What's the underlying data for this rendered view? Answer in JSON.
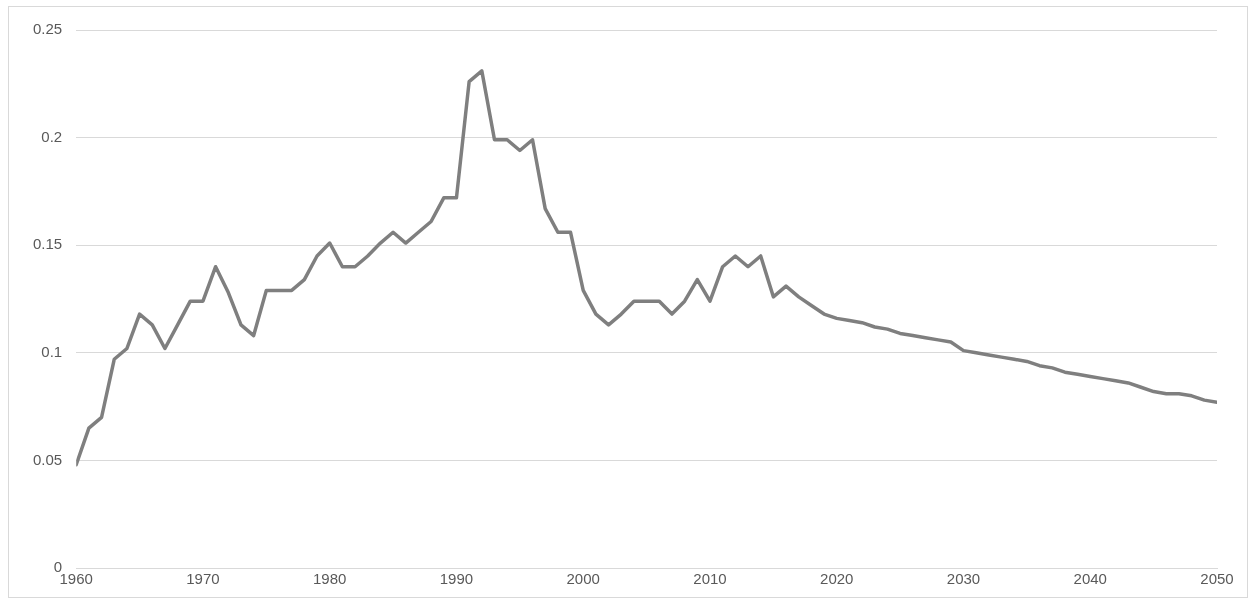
{
  "chart_data": {
    "type": "line",
    "x": [
      1960,
      1961,
      1962,
      1963,
      1964,
      1965,
      1966,
      1967,
      1968,
      1969,
      1970,
      1971,
      1972,
      1973,
      1974,
      1975,
      1976,
      1977,
      1978,
      1979,
      1980,
      1981,
      1982,
      1983,
      1984,
      1985,
      1986,
      1987,
      1988,
      1989,
      1990,
      1991,
      1992,
      1993,
      1994,
      1995,
      1996,
      1997,
      1998,
      1999,
      2000,
      2001,
      2002,
      2003,
      2004,
      2005,
      2006,
      2007,
      2008,
      2009,
      2010,
      2011,
      2012,
      2013,
      2014,
      2015,
      2016,
      2017,
      2018,
      2019,
      2020,
      2021,
      2022,
      2023,
      2024,
      2025,
      2026,
      2027,
      2028,
      2029,
      2030,
      2031,
      2032,
      2033,
      2034,
      2035,
      2036,
      2037,
      2038,
      2039,
      2040,
      2041,
      2042,
      2043,
      2044,
      2045,
      2046,
      2047,
      2048,
      2049,
      2050
    ],
    "series": [
      {
        "color": "#7f7f7f",
        "values": [
          0.048,
          0.065,
          0.07,
          0.097,
          0.102,
          0.118,
          0.113,
          0.102,
          0.113,
          0.124,
          0.124,
          0.14,
          0.128,
          0.113,
          0.108,
          0.129,
          0.129,
          0.129,
          0.134,
          0.145,
          0.151,
          0.14,
          0.14,
          0.145,
          0.151,
          0.156,
          0.151,
          0.156,
          0.161,
          0.172,
          0.172,
          0.226,
          0.231,
          0.199,
          0.199,
          0.194,
          0.199,
          0.167,
          0.156,
          0.156,
          0.129,
          0.118,
          0.113,
          0.118,
          0.124,
          0.124,
          0.124,
          0.118,
          0.124,
          0.134,
          0.124,
          0.14,
          0.145,
          0.14,
          0.145,
          0.126,
          0.131,
          0.126,
          0.122,
          0.118,
          0.116,
          0.115,
          0.114,
          0.112,
          0.111,
          0.109,
          0.108,
          0.107,
          0.106,
          0.105,
          0.101,
          0.1,
          0.099,
          0.098,
          0.097,
          0.096,
          0.094,
          0.093,
          0.091,
          0.09,
          0.089,
          0.088,
          0.087,
          0.086,
          0.084,
          0.082,
          0.081,
          0.081,
          0.08,
          0.078,
          0.077
        ]
      }
    ],
    "xlim": [
      1960,
      2050
    ],
    "xticks": [
      1960,
      1970,
      1980,
      1990,
      2000,
      2010,
      2020,
      2030,
      2040,
      2050
    ],
    "ylim": [
      0,
      0.25
    ],
    "yticks": [
      0,
      0.05,
      0.1,
      0.15,
      0.2,
      0.25
    ],
    "grid": "y",
    "legend": false,
    "marker": "none",
    "line_style": "solid"
  }
}
